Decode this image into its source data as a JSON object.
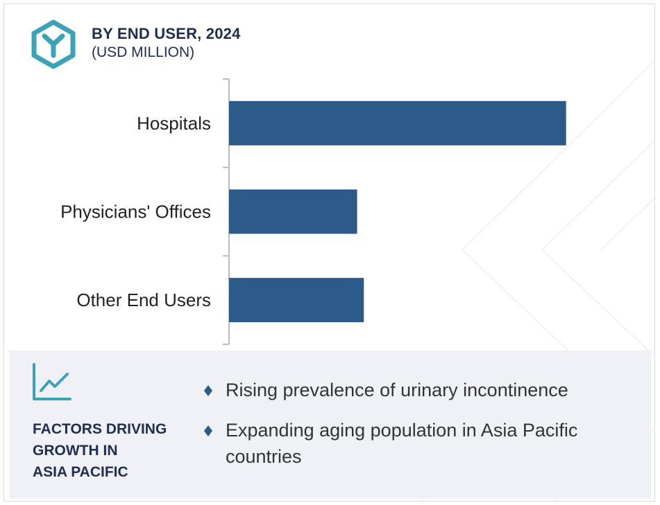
{
  "header": {
    "title": "BY END USER, 2024",
    "subtitle": "(USD MILLION)"
  },
  "chart_data": {
    "type": "bar",
    "orientation": "horizontal",
    "categories": [
      "Hospitals",
      "Physicians' Offices",
      "Other End Users"
    ],
    "values": [
      100,
      38,
      40
    ],
    "ylim": [
      0,
      105
    ],
    "title": "BY END USER, 2024",
    "subtitle": "(USD MILLION)",
    "xlabel": "",
    "ylabel": "",
    "grid": false,
    "legend": "none",
    "bar_color": "#2c5b8a"
  },
  "factors": {
    "title_lines": [
      "FACTORS DRIVING",
      "GROWTH IN",
      "ASIA PACIFIC"
    ],
    "items": [
      "Rising prevalence of urinary incontinence",
      "Expanding aging population in Asia Pacific countries"
    ]
  },
  "colors": {
    "accent": "#3aa3b8",
    "navy": "#1f2d4e",
    "bar": "#2c5b8a",
    "panel": "#eff1f6"
  },
  "icons": {
    "logo": "hexagon-y-logo-icon",
    "trend": "trend-line-icon",
    "bullet": "diamond-bullet-icon"
  }
}
